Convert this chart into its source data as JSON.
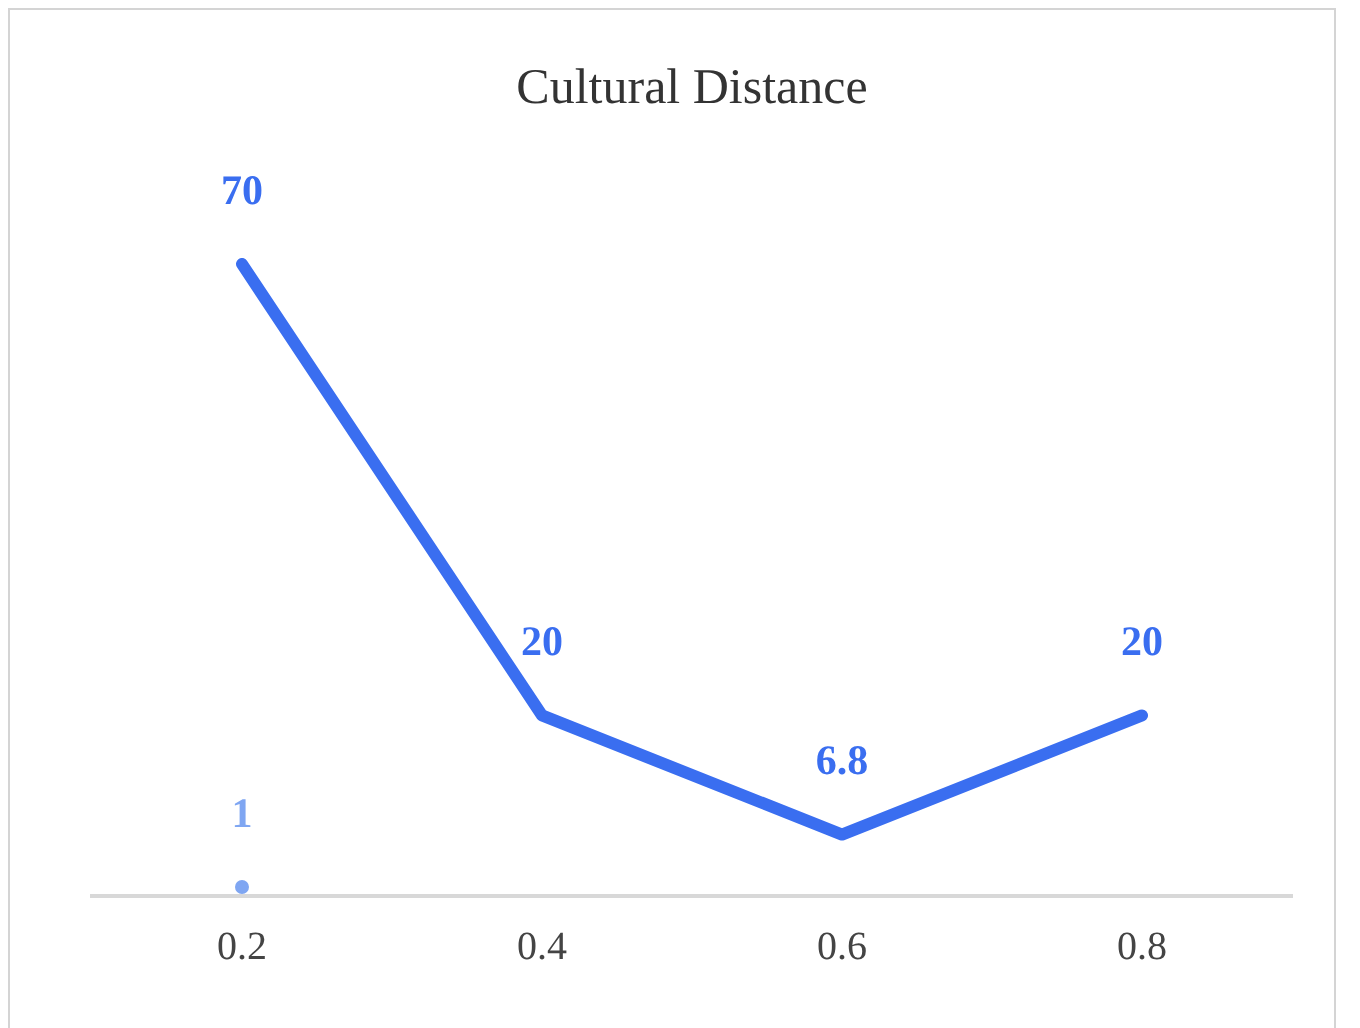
{
  "chart_data": {
    "type": "line",
    "title": "Cultural Distance",
    "categories": [
      "0.2",
      "0.4",
      "0.6",
      "0.8"
    ],
    "series": [
      {
        "color": "#3a6ef0",
        "values": [
          70,
          20,
          6.8,
          20
        ]
      },
      {
        "color": "#7fa6f2",
        "marker": "circle",
        "values": [
          1,
          null,
          null,
          null
        ]
      }
    ],
    "tick_labels": "x",
    "grid": false,
    "legend": false,
    "marker": "none",
    "line_style": "solid",
    "data_labels": true
  }
}
